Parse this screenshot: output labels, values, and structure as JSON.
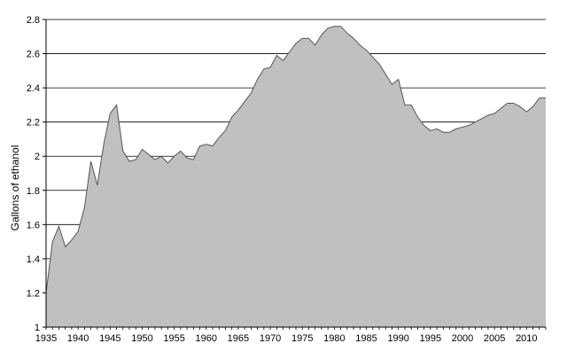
{
  "chart_data": {
    "type": "area",
    "title": "",
    "xlabel": "",
    "ylabel": "Gallons of ethanol",
    "xlim": [
      1935,
      2013
    ],
    "ylim": [
      1,
      2.8
    ],
    "y_ticks": [
      1,
      1.2,
      1.4,
      1.6,
      1.8,
      2,
      2.2,
      2.4,
      2.6,
      2.8
    ],
    "y_tick_labels": [
      "1",
      "1.2",
      "1.4",
      "1.6",
      "1.8",
      "2",
      "2.2",
      "2.4",
      "2.6",
      "2.8"
    ],
    "x_ticks": [
      1935,
      1940,
      1945,
      1950,
      1955,
      1960,
      1965,
      1970,
      1975,
      1980,
      1985,
      1990,
      1995,
      2000,
      2005,
      2010
    ],
    "x_tick_labels": [
      "1935",
      "1940",
      "1945",
      "1950",
      "1955",
      "1960",
      "1965",
      "1970",
      "1975",
      "1980",
      "1985",
      "1990",
      "1995",
      "2000",
      "2005",
      "2010"
    ],
    "grid": "horizontal",
    "fill_color": "#c0c0c0",
    "line_color": "#555555",
    "x": [
      1935,
      1936,
      1937,
      1938,
      1939,
      1940,
      1941,
      1942,
      1943,
      1944,
      1945,
      1946,
      1947,
      1948,
      1949,
      1950,
      1951,
      1952,
      1953,
      1954,
      1955,
      1956,
      1957,
      1958,
      1959,
      1960,
      1961,
      1962,
      1963,
      1964,
      1965,
      1966,
      1967,
      1968,
      1969,
      1970,
      1971,
      1972,
      1973,
      1974,
      1975,
      1976,
      1977,
      1978,
      1979,
      1980,
      1981,
      1982,
      1983,
      1984,
      1985,
      1986,
      1987,
      1988,
      1989,
      1990,
      1991,
      1992,
      1993,
      1994,
      1995,
      1996,
      1997,
      1998,
      1999,
      2000,
      2001,
      2002,
      2003,
      2004,
      2005,
      2006,
      2007,
      2008,
      2009,
      2010,
      2011,
      2012,
      2013
    ],
    "values": [
      1.2,
      1.5,
      1.59,
      1.47,
      1.51,
      1.56,
      1.7,
      1.97,
      1.83,
      2.07,
      2.25,
      2.3,
      2.03,
      1.97,
      1.98,
      2.04,
      2.01,
      1.98,
      2.0,
      1.96,
      2.0,
      2.03,
      1.99,
      1.98,
      2.06,
      2.07,
      2.06,
      2.11,
      2.15,
      2.23,
      2.27,
      2.32,
      2.37,
      2.45,
      2.51,
      2.52,
      2.59,
      2.56,
      2.61,
      2.66,
      2.69,
      2.69,
      2.65,
      2.71,
      2.75,
      2.76,
      2.76,
      2.72,
      2.69,
      2.65,
      2.62,
      2.58,
      2.54,
      2.48,
      2.42,
      2.45,
      2.3,
      2.3,
      2.23,
      2.18,
      2.15,
      2.16,
      2.14,
      2.14,
      2.16,
      2.17,
      2.18,
      2.2,
      2.22,
      2.24,
      2.25,
      2.28,
      2.31,
      2.31,
      2.29,
      2.26,
      2.29,
      2.34,
      2.34
    ]
  }
}
